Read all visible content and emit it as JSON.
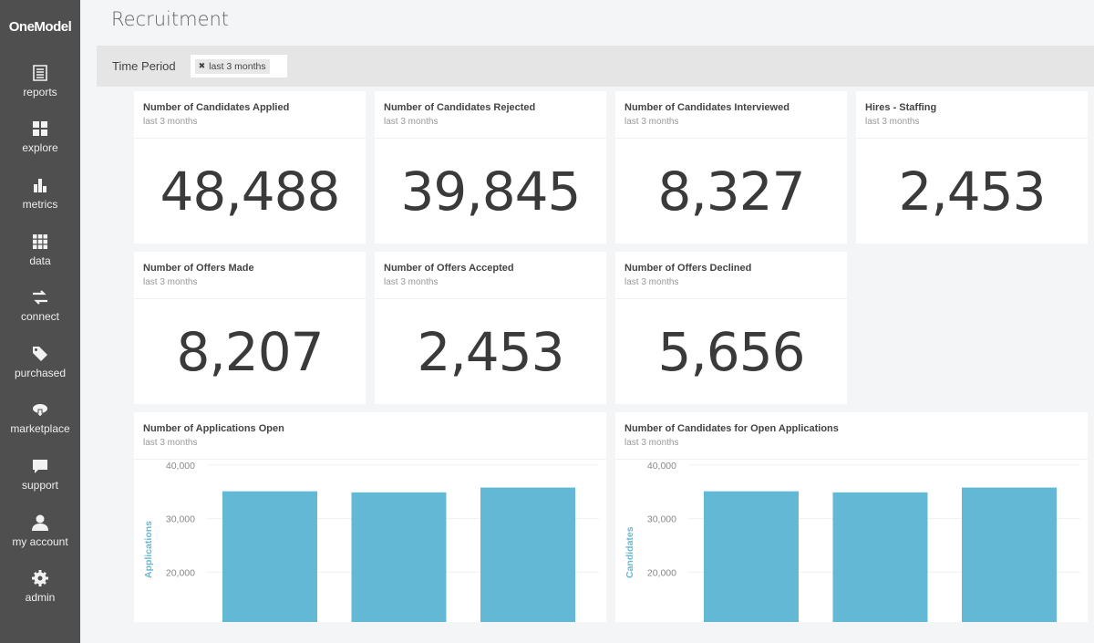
{
  "sidebar": {
    "logo": "OneModel",
    "items": [
      {
        "label": "reports",
        "icon": "reports-icon"
      },
      {
        "label": "explore",
        "icon": "explore-icon"
      },
      {
        "label": "metrics",
        "icon": "metrics-icon"
      },
      {
        "label": "data",
        "icon": "data-icon"
      },
      {
        "label": "connect",
        "icon": "connect-icon"
      },
      {
        "label": "purchased",
        "icon": "tag-icon"
      },
      {
        "label": "marketplace",
        "icon": "cloud-download-icon"
      },
      {
        "label": "support",
        "icon": "chat-icon"
      },
      {
        "label": "my account",
        "icon": "user-icon"
      },
      {
        "label": "admin",
        "icon": "gear-icon"
      }
    ]
  },
  "page_title": "Recruitment",
  "filter": {
    "label": "Time Period",
    "chip": "last 3 months"
  },
  "cards": [
    {
      "title": "Number of Candidates Applied",
      "sub": "last 3 months",
      "value": "48,488"
    },
    {
      "title": "Number of Candidates Rejected",
      "sub": "last 3 months",
      "value": "39,845"
    },
    {
      "title": "Number of Candidates Interviewed",
      "sub": "last 3 months",
      "value": "8,327"
    },
    {
      "title": "Hires - Staffing",
      "sub": "last 3 months",
      "value": "2,453"
    },
    {
      "title": "Number of Offers Made",
      "sub": "last 3 months",
      "value": "8,207"
    },
    {
      "title": "Number of Offers Accepted",
      "sub": "last 3 months",
      "value": "2,453"
    },
    {
      "title": "Number of Offers Declined",
      "sub": "last 3 months",
      "value": "5,656"
    }
  ],
  "chart_data": [
    {
      "type": "bar",
      "title": "Number of Applications Open",
      "subtitle": "last 3 months",
      "ylabel": "Applications",
      "yticks": [
        "20,000",
        "30,000",
        "40,000"
      ],
      "ytick_values": [
        20000,
        30000,
        40000
      ],
      "ylim": [
        10700,
        41000
      ],
      "values": [
        35100,
        34900,
        35800
      ],
      "color": "#63b8d6",
      "grid": true
    },
    {
      "type": "bar",
      "title": "Number of Candidates for Open Applications",
      "subtitle": "last 3 months",
      "ylabel": "Candidates",
      "yticks": [
        "20,000",
        "30,000",
        "40,000"
      ],
      "ytick_values": [
        20000,
        30000,
        40000
      ],
      "ylim": [
        10700,
        41000
      ],
      "values": [
        35100,
        34900,
        35800
      ],
      "color": "#63b8d6",
      "grid": true
    }
  ]
}
